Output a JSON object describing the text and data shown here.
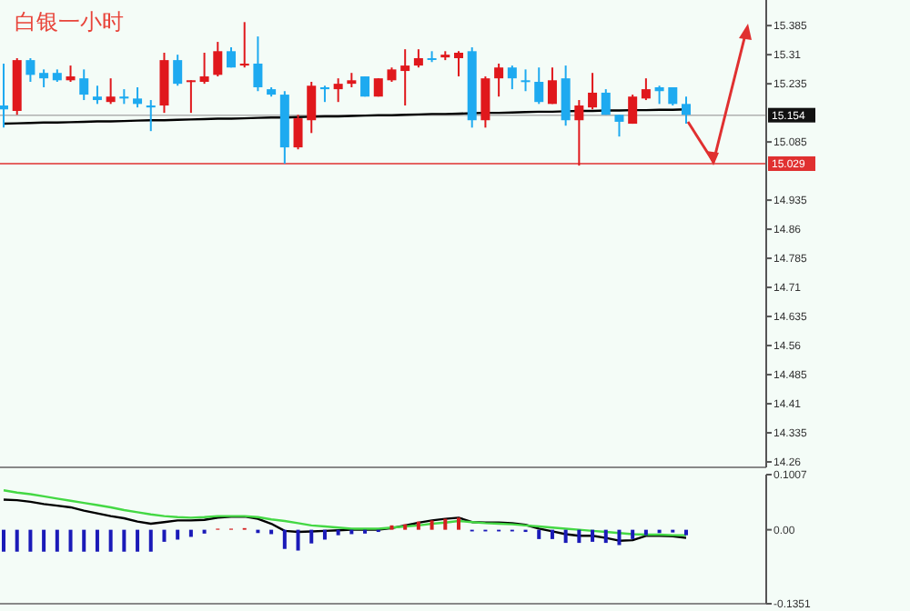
{
  "chart_data": [
    {
      "type": "candlestick",
      "title": "白银一小时",
      "categories": [
        null,
        null,
        null,
        null,
        null,
        null,
        null,
        null,
        null,
        null,
        null,
        null,
        null,
        null,
        null,
        null,
        null,
        null,
        null,
        null,
        null,
        null,
        null,
        null,
        null,
        null,
        null,
        null,
        null,
        null,
        null,
        null,
        null,
        null,
        null,
        null,
        null,
        null,
        null,
        null,
        null,
        null,
        null,
        null,
        null,
        null,
        null,
        null,
        null,
        null,
        null,
        null
      ],
      "ohlc": [
        [
          15.179,
          15.287,
          15.122,
          15.169
        ],
        [
          15.165,
          15.301,
          15.155,
          15.296
        ],
        [
          15.296,
          15.301,
          15.24,
          15.258
        ],
        [
          15.263,
          15.272,
          15.226,
          15.249
        ],
        [
          15.263,
          15.272,
          15.24,
          15.244
        ],
        [
          15.244,
          15.282,
          15.24,
          15.254
        ],
        [
          15.249,
          15.272,
          15.193,
          15.207
        ],
        [
          15.202,
          15.23,
          15.183,
          15.193
        ],
        [
          15.188,
          15.249,
          15.183,
          15.202
        ],
        [
          15.202,
          15.221,
          15.183,
          15.197
        ],
        [
          15.197,
          15.226,
          15.174,
          15.183
        ],
        [
          15.179,
          15.193,
          15.113,
          15.174
        ],
        [
          15.179,
          15.315,
          15.16,
          15.296
        ],
        [
          15.296,
          15.31,
          15.23,
          15.235
        ],
        [
          15.24,
          15.244,
          15.16,
          15.244
        ],
        [
          15.24,
          15.315,
          15.235,
          15.254
        ],
        [
          15.258,
          15.343,
          15.254,
          15.319
        ],
        [
          15.319,
          15.329,
          15.277,
          15.277
        ],
        [
          15.282,
          15.394,
          15.277,
          15.287
        ],
        [
          15.287,
          15.357,
          15.216,
          15.226
        ],
        [
          15.221,
          15.226,
          15.202,
          15.207
        ],
        [
          15.207,
          15.216,
          15.029,
          15.071
        ],
        [
          15.071,
          15.155,
          15.066,
          15.146
        ],
        [
          15.141,
          15.24,
          15.108,
          15.23
        ],
        [
          15.226,
          15.23,
          15.188,
          15.221
        ],
        [
          15.221,
          15.249,
          15.188,
          15.235
        ],
        [
          15.235,
          15.263,
          15.226,
          15.244
        ],
        [
          15.254,
          15.254,
          15.202,
          15.202
        ],
        [
          15.202,
          15.249,
          15.202,
          15.249
        ],
        [
          15.244,
          15.277,
          15.24,
          15.272
        ],
        [
          15.268,
          15.324,
          15.179,
          15.282
        ],
        [
          15.282,
          15.324,
          15.277,
          15.301
        ],
        [
          15.301,
          15.319,
          15.291,
          15.298
        ],
        [
          15.303,
          15.319,
          15.296,
          15.31
        ],
        [
          15.301,
          15.319,
          15.254,
          15.315
        ],
        [
          15.319,
          15.329,
          15.122,
          15.141
        ],
        [
          15.141,
          15.254,
          15.122,
          15.249
        ],
        [
          15.249,
          15.287,
          15.202,
          15.277
        ],
        [
          15.277,
          15.282,
          15.221,
          15.249
        ],
        [
          15.244,
          15.272,
          15.216,
          15.24
        ],
        [
          15.24,
          15.277,
          15.183,
          15.188
        ],
        [
          15.183,
          15.277,
          15.183,
          15.244
        ],
        [
          15.249,
          15.282,
          15.127,
          15.141
        ],
        [
          15.141,
          15.193,
          15.024,
          15.179
        ],
        [
          15.174,
          15.263,
          15.169,
          15.212
        ],
        [
          15.212,
          15.221,
          15.155,
          15.155
        ],
        [
          15.155,
          15.155,
          15.099,
          15.137
        ],
        [
          15.132,
          15.207,
          15.132,
          15.202
        ],
        [
          15.197,
          15.249,
          15.193,
          15.221
        ],
        [
          15.226,
          15.23,
          15.183,
          15.216
        ],
        [
          15.226,
          15.226,
          15.179,
          15.183
        ],
        [
          15.183,
          15.202,
          15.132,
          15.155
        ]
      ],
      "colors": [
        "#1eaaf0",
        "#e0181c",
        "#1eaaf0",
        "#1eaaf0",
        "#1eaaf0",
        "#e0181c",
        "#1eaaf0",
        "#1eaaf0",
        "#e0181c",
        "#1eaaf0",
        "#1eaaf0",
        "#1eaaf0",
        "#e0181c",
        "#1eaaf0",
        "#e0181c",
        "#e0181c",
        "#e0181c",
        "#1eaaf0",
        "#e0181c",
        "#1eaaf0",
        "#1eaaf0",
        "#1eaaf0",
        "#e0181c",
        "#e0181c",
        "#1eaaf0",
        "#e0181c",
        "#e0181c",
        "#1eaaf0",
        "#e0181c",
        "#e0181c",
        "#e0181c",
        "#e0181c",
        "#1eaaf0",
        "#e0181c",
        "#e0181c",
        "#1eaaf0",
        "#e0181c",
        "#e0181c",
        "#1eaaf0",
        "#1eaaf0",
        "#1eaaf0",
        "#e0181c",
        "#1eaaf0",
        "#e0181c",
        "#e0181c",
        "#1eaaf0",
        "#1eaaf0",
        "#e0181c",
        "#e0181c",
        "#1eaaf0",
        "#1eaaf0",
        "#1eaaf0"
      ],
      "series": [
        {
          "type": "line",
          "color": "#000000",
          "values": [
            15.132,
            15.133,
            15.134,
            15.135,
            15.135,
            15.136,
            15.137,
            15.138,
            15.138,
            15.139,
            15.14,
            15.141,
            15.141,
            15.142,
            15.143,
            15.144,
            15.145,
            15.145,
            15.146,
            15.147,
            15.148,
            15.148,
            15.149,
            15.15,
            15.151,
            15.151,
            15.152,
            15.153,
            15.154,
            15.154,
            15.155,
            15.156,
            15.157,
            15.157,
            15.158,
            15.159,
            15.16,
            15.16,
            15.161,
            15.162,
            15.163,
            15.163,
            15.164,
            15.165,
            15.165,
            15.166,
            15.166,
            15.167,
            15.167,
            15.168,
            15.168,
            15.169
          ]
        }
      ],
      "ylim": [
        14.246,
        15.451
      ],
      "yticks": [
        15.385,
        15.31,
        15.235,
        15.085,
        14.935,
        14.86,
        14.785,
        14.71,
        14.635,
        14.56,
        14.485,
        14.41,
        14.335,
        14.26
      ],
      "ref_lines": [
        {
          "axis": "y",
          "value": 15.154,
          "label": "15.154",
          "color": "#b0b0b0"
        },
        {
          "axis": "y",
          "value": 15.029,
          "label": "15.029",
          "color": "#e03030"
        }
      ],
      "tick_labels": "y"
    },
    {
      "type": "bar",
      "categories": [
        null,
        null,
        null,
        null,
        null,
        null,
        null,
        null,
        null,
        null,
        null,
        null,
        null,
        null,
        null,
        null,
        null,
        null,
        null,
        null,
        null,
        null,
        null,
        null,
        null,
        null,
        null,
        null,
        null,
        null,
        null,
        null,
        null,
        null,
        null,
        null,
        null,
        null,
        null,
        null,
        null,
        null,
        null,
        null,
        null,
        null,
        null,
        null,
        null,
        null,
        null,
        null
      ],
      "series": [
        {
          "type": "bar",
          "values": [
            -0.04,
            -0.04,
            -0.04,
            -0.04,
            -0.04,
            -0.04,
            -0.04,
            -0.04,
            -0.04,
            -0.04,
            -0.04,
            -0.04,
            -0.022,
            -0.018,
            -0.013,
            -0.007,
            0.002,
            0.002,
            0.003,
            -0.006,
            -0.008,
            -0.035,
            -0.038,
            -0.025,
            -0.018,
            -0.01,
            -0.008,
            -0.007,
            -0.004,
            0.008,
            0.01,
            0.015,
            0.017,
            0.02,
            0.022,
            -0.003,
            -0.003,
            -0.003,
            -0.003,
            -0.004,
            -0.017,
            -0.017,
            -0.024,
            -0.024,
            -0.022,
            -0.024,
            -0.028,
            -0.017,
            -0.01,
            -0.006,
            -0.005,
            -0.01
          ],
          "colors": [
            "#1a1ab8",
            "#1a1ab8",
            "#1a1ab8",
            "#1a1ab8",
            "#1a1ab8",
            "#1a1ab8",
            "#1a1ab8",
            "#1a1ab8",
            "#1a1ab8",
            "#1a1ab8",
            "#1a1ab8",
            "#1a1ab8",
            "#1a1ab8",
            "#1a1ab8",
            "#1a1ab8",
            "#1a1ab8",
            "#d42020",
            "#d42020",
            "#d42020",
            "#1a1ab8",
            "#1a1ab8",
            "#1a1ab8",
            "#1a1ab8",
            "#1a1ab8",
            "#1a1ab8",
            "#1a1ab8",
            "#1a1ab8",
            "#1a1ab8",
            "#1a1ab8",
            "#d42020",
            "#d42020",
            "#d42020",
            "#d42020",
            "#d42020",
            "#d42020",
            "#1a1ab8",
            "#1a1ab8",
            "#1a1ab8",
            "#1a1ab8",
            "#1a1ab8",
            "#1a1ab8",
            "#1a1ab8",
            "#1a1ab8",
            "#1a1ab8",
            "#1a1ab8",
            "#1a1ab8",
            "#1a1ab8",
            "#1a1ab8",
            "#1a1ab8",
            "#1a1ab8",
            "#1a1ab8",
            "#1a1ab8"
          ]
        },
        {
          "type": "line",
          "color": "#000000",
          "values": [
            0.055,
            0.054,
            0.051,
            0.047,
            0.044,
            0.041,
            0.035,
            0.03,
            0.025,
            0.021,
            0.015,
            0.011,
            0.014,
            0.017,
            0.017,
            0.018,
            0.022,
            0.024,
            0.024,
            0.02,
            0.011,
            -0.002,
            -0.004,
            -0.003,
            -0.002,
            -0.001,
            0,
            0,
            0,
            0.003,
            0.008,
            0.013,
            0.017,
            0.02,
            0.022,
            0.014,
            0.013,
            0.013,
            0.012,
            0.009,
            0.002,
            -0.003,
            -0.008,
            -0.011,
            -0.011,
            -0.015,
            -0.02,
            -0.019,
            -0.011,
            -0.011,
            -0.012,
            -0.015
          ]
        },
        {
          "type": "line",
          "color": "#44d844",
          "values": [
            0.072,
            0.068,
            0.065,
            0.061,
            0.057,
            0.053,
            0.049,
            0.045,
            0.041,
            0.036,
            0.032,
            0.028,
            0.025,
            0.023,
            0.022,
            0.023,
            0.025,
            0.025,
            0.025,
            0.023,
            0.019,
            0.016,
            0.012,
            0.008,
            0.006,
            0.004,
            0.002,
            0.002,
            0.002,
            0.004,
            0.006,
            0.008,
            0.011,
            0.013,
            0.016,
            0.014,
            0.012,
            0.011,
            0.01,
            0.008,
            0.006,
            0.004,
            0.002,
            0,
            -0.002,
            -0.004,
            -0.006,
            -0.008,
            -0.009,
            -0.009,
            -0.01,
            -0.01
          ]
        }
      ],
      "ylim": [
        -0.1351,
        0.1007
      ],
      "yticks": [
        0.1007,
        {
          "value": 0,
          "label": "0.00"
        },
        -0.1351
      ],
      "tick_labels": "y"
    }
  ]
}
